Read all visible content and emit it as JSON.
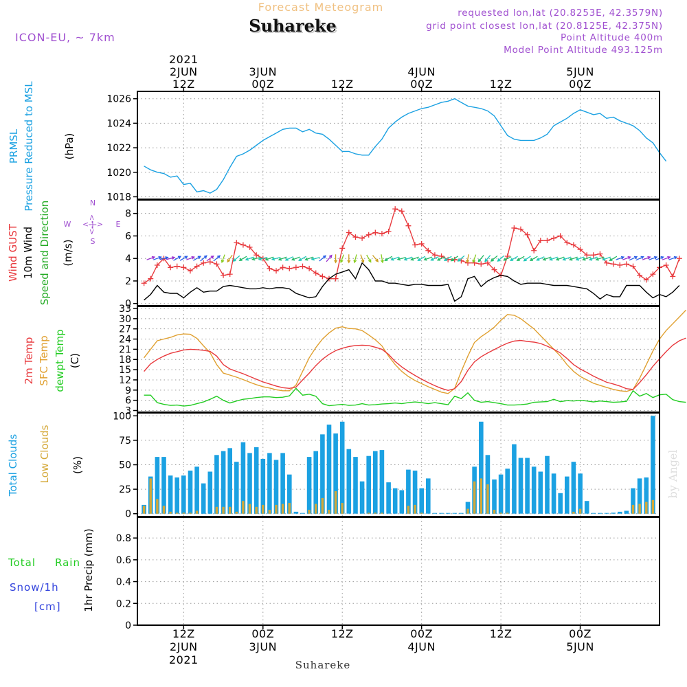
{
  "header": {
    "title": "Forecast Meteogram",
    "location": "Suhareke",
    "model": "ICON-EU, ~ 7km",
    "requested": "requested lon,lat (20.8253E, 42.3579N)",
    "grid_point": "grid point closest lon,lat (20.8125E, 42.375N)",
    "point_altitude": "Point Altitude 400m",
    "model_altitude": "Model Point Altitude 493.125m",
    "watermark": "by Angel",
    "bottom_label": "Suhareke"
  },
  "colors": {
    "pressure": "#1ba1e2",
    "gust": "#e8393d",
    "wind": "#000000",
    "temp2m": "#e8393d",
    "sfc": "#e0a030",
    "dewpt": "#22cc22",
    "total_clouds": "#1ba1e2",
    "low_clouds": "#d4a838",
    "rain": "#22cc22",
    "snow": "#3344dd",
    "compass": "#a050d0",
    "header_meta": "#a050d0",
    "title": "#f0c080"
  },
  "time_axis": {
    "top_ticks": [
      {
        "t": 12,
        "lines": [
          "2021",
          "2JUN",
          "12Z"
        ]
      },
      {
        "t": 24,
        "lines": [
          "3JUN",
          "00Z"
        ]
      },
      {
        "t": 36,
        "lines": [
          "12Z"
        ]
      },
      {
        "t": 48,
        "lines": [
          "4JUN",
          "00Z"
        ]
      },
      {
        "t": 60,
        "lines": [
          "12Z"
        ]
      },
      {
        "t": 72,
        "lines": [
          "5JUN",
          "00Z"
        ]
      }
    ],
    "bottom_ticks": [
      {
        "t": 12,
        "lines": [
          "12Z",
          "2JUN",
          "2021"
        ]
      },
      {
        "t": 24,
        "lines": [
          "00Z",
          "3JUN"
        ]
      },
      {
        "t": 36,
        "lines": [
          "12Z"
        ]
      },
      {
        "t": 48,
        "lines": [
          "00Z",
          "4JUN"
        ]
      },
      {
        "t": 60,
        "lines": [
          "12Z"
        ]
      },
      {
        "t": 72,
        "lines": [
          "00Z",
          "5JUN"
        ]
      }
    ]
  },
  "panels": {
    "pressure": {
      "labels": [
        "PRMSL",
        "Pressure Reduced to MSL"
      ],
      "unit": "(hPa)"
    },
    "wind": {
      "labels": [
        "Wind GUST",
        "10m Wind",
        "Speed and Direction"
      ],
      "unit": "(m/s)",
      "compass": [
        "N",
        "S",
        "W",
        "E",
        "<-|->",
        "<-|->"
      ]
    },
    "temp": {
      "labels": [
        "2m Temp",
        "SFC Temp",
        "dewpt Temp"
      ],
      "unit": "(C)"
    },
    "clouds": {
      "labels": [
        "Total Clouds",
        "Low Clouds"
      ],
      "unit": "(%)"
    },
    "precip": {
      "labels": [
        "Total",
        "Rain",
        "Snow/1h",
        "[cm]"
      ],
      "axis": "1hr Precip (mm)"
    }
  },
  "chart_data": [
    {
      "type": "line",
      "panel": "pressure",
      "x_unit": "hours from 2 Jun 2021 00Z",
      "ylim": [
        1017.8,
        1026.6
      ],
      "yticks": [
        1018,
        1020,
        1022,
        1024,
        1026
      ],
      "series": [
        {
          "name": "PRMSL",
          "x_start": 6,
          "x_step": 1,
          "values": [
            1020.5,
            1020.2,
            1020.0,
            1019.9,
            1019.6,
            1019.7,
            1019.0,
            1019.1,
            1018.4,
            1018.5,
            1018.3,
            1018.6,
            1019.4,
            1020.4,
            1021.3,
            1021.5,
            1021.8,
            1022.2,
            1022.6,
            1022.9,
            1023.2,
            1023.5,
            1023.6,
            1023.6,
            1023.3,
            1023.5,
            1023.2,
            1023.1,
            1022.7,
            1022.2,
            1021.7,
            1021.7,
            1021.5,
            1021.4,
            1021.4,
            1022.1,
            1022.7,
            1023.6,
            1024.1,
            1024.5,
            1024.8,
            1025.0,
            1025.2,
            1025.3,
            1025.5,
            1025.7,
            1025.8,
            1026.0,
            1025.7,
            1025.4,
            1025.3,
            1025.2,
            1025.0,
            1024.6,
            1023.8,
            1023.0,
            1022.7,
            1022.6,
            1022.6,
            1022.6,
            1022.8,
            1023.1,
            1023.8,
            1024.1,
            1024.4,
            1024.8,
            1025.1,
            1024.9,
            1024.7,
            1024.8,
            1024.4,
            1024.5,
            1024.2,
            1024.0,
            1023.8,
            1023.4,
            1022.8,
            1022.4,
            1021.6,
            1020.9
          ]
        }
      ]
    },
    {
      "type": "line",
      "panel": "wind",
      "ylim": [
        -0.2,
        9.2
      ],
      "yticks": [
        0,
        2,
        4,
        6,
        8
      ],
      "series": [
        {
          "name": "Wind GUST",
          "x_start": 6,
          "x_step": 1,
          "values": [
            1.8,
            2.2,
            3.4,
            4.0,
            3.2,
            3.3,
            3.2,
            2.9,
            3.3,
            3.6,
            3.7,
            3.5,
            2.5,
            2.6,
            5.4,
            5.2,
            5.0,
            4.3,
            4.0,
            3.1,
            2.9,
            3.2,
            3.1,
            3.2,
            3.3,
            3.1,
            2.7,
            2.4,
            2.2,
            2.2,
            4.9,
            6.3,
            5.9,
            5.8,
            6.1,
            6.3,
            6.2,
            6.4,
            8.4,
            8.2,
            6.9,
            5.2,
            5.3,
            4.7,
            4.3,
            4.2,
            3.9,
            3.9,
            3.8,
            3.6,
            3.6,
            3.5,
            3.6,
            3.0,
            2.5,
            4.2,
            6.7,
            6.6,
            6.1,
            4.7,
            5.6,
            5.6,
            5.8,
            6.0,
            5.4,
            5.2,
            4.8,
            4.3,
            4.3,
            4.4,
            3.6,
            3.5,
            3.4,
            3.5,
            3.3,
            2.5,
            2.1,
            2.6,
            3.2,
            3.4,
            2.4,
            4.0
          ]
        },
        {
          "name": "10m Wind",
          "x_start": 6,
          "x_step": 1,
          "values": [
            0.3,
            0.8,
            1.6,
            1.0,
            0.9,
            0.9,
            0.5,
            1.0,
            1.4,
            1.0,
            1.1,
            1.1,
            1.5,
            1.6,
            1.5,
            1.4,
            1.3,
            1.3,
            1.4,
            1.3,
            1.4,
            1.4,
            1.3,
            0.9,
            0.7,
            0.5,
            0.6,
            1.5,
            2.2,
            2.6,
            2.8,
            3.0,
            2.2,
            3.6,
            3.0,
            2.0,
            2.0,
            1.8,
            1.8,
            1.7,
            1.6,
            1.7,
            1.7,
            1.6,
            1.6,
            1.6,
            1.7,
            0.2,
            0.6,
            2.2,
            2.4,
            1.5,
            2.0,
            2.3,
            2.5,
            2.4,
            2.0,
            1.7,
            1.8,
            1.8,
            1.8,
            1.7,
            1.6,
            1.6,
            1.6,
            1.5,
            1.4,
            1.3,
            0.9,
            0.4,
            0.8,
            0.6,
            0.6,
            1.6,
            1.6,
            1.6,
            1.0,
            0.5,
            0.8,
            0.6,
            1.0,
            1.6
          ]
        }
      ],
      "arrows": {
        "x_start": 7,
        "x_step": 1,
        "y": 4.0,
        "dir_deg": [
          70,
          70,
          75,
          75,
          60,
          60,
          70,
          60,
          50,
          55,
          50,
          200,
          215,
          230,
          240,
          250,
          255,
          255,
          250,
          255,
          250,
          245,
          250,
          240,
          250,
          255,
          50,
          40,
          180,
          200,
          180,
          195,
          160,
          150,
          140,
          170,
          240,
          250,
          255,
          250,
          250,
          240,
          250,
          245,
          245,
          240,
          235,
          230,
          190,
          200,
          220,
          220,
          230,
          230,
          245,
          240,
          240,
          235,
          240,
          245,
          250,
          250,
          250,
          250,
          250,
          250,
          250,
          250,
          250,
          250,
          240,
          70,
          70,
          65,
          65,
          70,
          70,
          70,
          70,
          70
        ]
      }
    },
    {
      "type": "line",
      "panel": "temp",
      "ylim": [
        2.5,
        33.6
      ],
      "yticks": [
        3,
        6,
        9,
        12,
        15,
        18,
        21,
        24,
        27,
        30,
        33
      ],
      "series": [
        {
          "name": "2m Temp",
          "x_start": 6,
          "x_step": 1,
          "values": [
            14.5,
            16.7,
            18.0,
            19.0,
            19.8,
            20.3,
            20.8,
            21.0,
            20.9,
            20.7,
            20.4,
            19.0,
            16.5,
            15.2,
            14.5,
            13.8,
            13.0,
            12.2,
            11.4,
            10.8,
            10.2,
            9.7,
            9.5,
            9.9,
            12.0,
            14.0,
            16.2,
            18.1,
            19.5,
            20.6,
            21.3,
            21.8,
            22.1,
            22.2,
            22.1,
            21.6,
            21.0,
            19.5,
            17.4,
            15.8,
            14.5,
            13.3,
            12.2,
            11.2,
            10.3,
            9.5,
            8.9,
            9.4,
            11.5,
            14.8,
            17.3,
            18.8,
            19.9,
            20.9,
            21.9,
            22.8,
            23.4,
            23.6,
            23.3,
            23.1,
            22.7,
            21.9,
            21.0,
            19.9,
            18.3,
            16.5,
            15.2,
            14.2,
            13.1,
            12.2,
            11.3,
            10.8,
            10.2,
            9.4,
            9.2,
            11.2,
            13.5,
            16.0,
            18.2,
            20.3,
            22.2,
            23.5,
            24.3
          ]
        },
        {
          "name": "SFC Temp",
          "x_start": 6,
          "x_step": 1,
          "values": [
            18.5,
            21.0,
            23.5,
            24.0,
            24.5,
            25.2,
            25.5,
            25.4,
            24.2,
            22.0,
            20.0,
            16.5,
            14.0,
            13.4,
            12.8,
            12.1,
            11.3,
            10.6,
            10.0,
            9.6,
            9.1,
            8.8,
            8.8,
            10.5,
            14.5,
            18.5,
            21.5,
            24.0,
            25.8,
            27.2,
            27.6,
            27.1,
            27.0,
            26.5,
            25.2,
            23.8,
            22.0,
            19.0,
            16.5,
            14.5,
            13.0,
            11.8,
            10.9,
            10.0,
            9.2,
            8.4,
            8.0,
            9.5,
            14.5,
            19.0,
            23.0,
            24.7,
            26.0,
            27.5,
            29.5,
            31.2,
            31.0,
            30.0,
            28.5,
            27.0,
            25.0,
            23.0,
            21.0,
            19.0,
            16.5,
            14.5,
            13.0,
            12.0,
            11.0,
            10.4,
            9.8,
            9.2,
            8.8,
            8.6,
            9.2,
            12.5,
            16.5,
            20.5,
            24.0,
            26.5,
            28.5,
            30.5,
            32.5
          ]
        },
        {
          "name": "dewpt Temp",
          "x_start": 6,
          "x_step": 1,
          "values": [
            7.5,
            7.5,
            5.3,
            4.8,
            4.5,
            4.6,
            4.3,
            4.5,
            5.0,
            5.5,
            6.3,
            7.2,
            6.0,
            5.2,
            5.8,
            6.3,
            6.5,
            6.8,
            7.0,
            7.0,
            6.8,
            6.9,
            7.3,
            9.5,
            7.5,
            7.8,
            7.2,
            5.0,
            4.4,
            4.6,
            4.8,
            4.5,
            4.6,
            5.0,
            4.6,
            4.7,
            4.9,
            5.0,
            5.2,
            5.0,
            5.3,
            5.5,
            5.3,
            5.0,
            5.3,
            5.0,
            4.7,
            7.2,
            6.5,
            8.2,
            6.0,
            5.4,
            5.6,
            5.3,
            5.0,
            4.6,
            4.6,
            4.7,
            4.9,
            5.4,
            5.5,
            5.6,
            6.3,
            5.6,
            5.9,
            5.8,
            6.0,
            5.8,
            5.5,
            5.8,
            5.6,
            5.4,
            5.5,
            5.7,
            8.8,
            7.2,
            8.0,
            6.8,
            7.6,
            7.8,
            6.2,
            5.6,
            5.4
          ]
        }
      ]
    },
    {
      "type": "bar",
      "panel": "clouds",
      "ylim": [
        -3,
        103
      ],
      "yticks": [
        0,
        25,
        50,
        75,
        100
      ],
      "series": [
        {
          "name": "Total Clouds",
          "x_start": 6,
          "x_step": 1,
          "values": [
            9,
            38,
            58,
            58,
            39,
            37,
            39,
            44,
            48,
            31,
            43,
            60,
            64,
            67,
            53,
            73,
            62,
            68,
            56,
            62,
            55,
            62,
            40,
            2,
            0,
            58,
            64,
            81,
            91,
            82,
            94,
            66,
            58,
            33,
            59,
            64,
            65,
            32,
            26,
            24,
            45,
            44,
            26,
            36,
            0,
            0,
            0,
            0,
            0,
            12,
            48,
            94,
            60,
            35,
            40,
            46,
            71,
            57,
            57,
            48,
            43,
            59,
            41,
            21,
            38,
            53,
            41,
            13,
            0,
            0,
            0,
            1,
            2,
            3,
            26,
            36,
            37,
            100
          ]
        },
        {
          "name": "Low Clouds",
          "x_start": 6,
          "x_step": 1,
          "values": [
            8,
            36,
            15,
            8,
            2,
            1,
            1,
            1,
            3,
            0,
            0,
            7,
            7,
            7,
            2,
            13,
            10,
            7,
            9,
            4,
            9,
            10,
            11,
            0,
            0,
            4,
            10,
            16,
            4,
            23,
            11,
            0,
            0,
            0,
            1,
            1,
            1,
            0,
            0,
            0,
            8,
            9,
            1,
            0,
            0,
            0,
            0,
            0,
            0,
            5,
            33,
            36,
            30,
            4,
            1,
            1,
            0,
            0,
            0,
            0,
            0,
            0,
            0,
            0,
            0,
            2,
            5,
            0,
            0,
            0,
            0,
            0,
            0,
            0,
            9,
            10,
            12,
            14
          ]
        }
      ]
    },
    {
      "type": "bar",
      "panel": "precip",
      "ylim": [
        0,
        0.99
      ],
      "yticks": [
        0,
        0.2,
        0.4,
        0.6,
        0.8
      ],
      "series": [
        {
          "name": "Total",
          "x_start": 6,
          "x_step": 1,
          "values": []
        },
        {
          "name": "Snow/1h",
          "x_start": 6,
          "x_step": 1,
          "values": []
        }
      ]
    }
  ]
}
